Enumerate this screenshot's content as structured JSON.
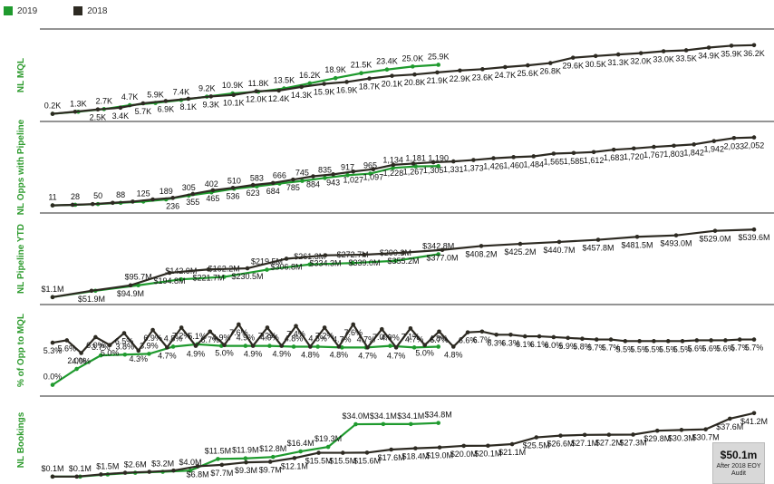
{
  "legend": [
    {
      "name": "2019",
      "color": "#1f9a2e"
    },
    {
      "name": "2018",
      "color": "#2d2a22"
    }
  ],
  "colors": {
    "series_2019": "#1f9a2e",
    "series_2018": "#2d2a22",
    "panel_label": "#2e9b2e"
  },
  "chart_data": [
    {
      "type": "line",
      "title": "NL MQL",
      "series": [
        {
          "name": "2019",
          "values": [
            0.2,
            1.3,
            2.7,
            4.7,
            5.9,
            7.4,
            9.2,
            10.9,
            11.8,
            13.5,
            16.2,
            18.9,
            21.5,
            23.4,
            25.0,
            25.9
          ],
          "labels": [
            "0.2K",
            "1.3K",
            "2.7K",
            "4.7K",
            "5.9K",
            "7.4K",
            "9.2K",
            "10.9K",
            "11.8K",
            "13.5K",
            "16.2K",
            "18.9K",
            "21.5K",
            "23.4K",
            "25.0K",
            "25.9K"
          ]
        },
        {
          "name": "2018",
          "values": [
            0.2,
            1.3,
            2.5,
            3.4,
            5.7,
            6.9,
            8.1,
            9.3,
            10.1,
            12.0,
            12.4,
            14.3,
            15.9,
            16.9,
            18.7,
            20.1,
            20.8,
            21.9,
            22.9,
            23.6,
            24.7,
            25.6,
            26.8,
            29.6,
            30.5,
            31.3,
            32.0,
            33.0,
            33.5,
            34.9,
            35.9,
            36.2
          ],
          "labels": [
            "",
            "",
            "2.5K",
            "3.4K",
            "5.7K",
            "6.9K",
            "8.1K",
            "9.3K",
            "10.1K",
            "12.0K",
            "12.4K",
            "14.3K",
            "15.9K",
            "16.9K",
            "18.7K",
            "20.1K",
            "20.8K",
            "21.9K",
            "22.9K",
            "23.6K",
            "24.7K",
            "25.6K",
            "26.8K",
            "29.6K",
            "30.5K",
            "31.3K",
            "32.0K",
            "33.0K",
            "33.5K",
            "34.9K",
            "35.9K",
            "36.2K"
          ]
        }
      ]
    },
    {
      "type": "line",
      "title": "NL Opps with Pipeline",
      "series": [
        {
          "name": "2019",
          "values": [
            11,
            28,
            50,
            88,
            125,
            189,
            305,
            402,
            510,
            583,
            666,
            745,
            835,
            917,
            965,
            1134,
            1181,
            1190
          ],
          "labels": [
            "11",
            "28",
            "50",
            "88",
            "125",
            "189",
            "305",
            "402",
            "510",
            "583",
            "666",
            "745",
            "835",
            "917",
            "965",
            "1,134",
            "1,181",
            "1,190"
          ]
        },
        {
          "name": "2018",
          "values": [
            11,
            28,
            50,
            88,
            125,
            189,
            236,
            355,
            465,
            536,
            623,
            684,
            785,
            884,
            943,
            1027,
            1097,
            1228,
            1267,
            1305,
            1331,
            1373,
            1426,
            1460,
            1484,
            1565,
            1585,
            1612,
            1683,
            1720,
            1767,
            1803,
            1842,
            1942,
            2033,
            2052
          ],
          "labels": [
            "",
            "",
            "",
            "",
            "",
            "",
            "236",
            "355",
            "465",
            "536",
            "623",
            "684",
            "785",
            "884",
            "943",
            "1,027",
            "1,097",
            "1,228",
            "1,267",
            "1,305",
            "1,331",
            "1,373",
            "1,426",
            "1,460",
            "1,484",
            "1,565",
            "1,585",
            "1,612",
            "1,683",
            "1,720",
            "1,767",
            "1,803",
            "1,842",
            "1,942",
            "2,033",
            "2,052"
          ]
        }
      ]
    },
    {
      "type": "line",
      "title": "NL Pipeline YTD",
      "series": [
        {
          "name": "2019",
          "values": [
            1.1,
            51.9,
            95.7,
            142.9,
            162.2,
            219.5,
            261.3,
            272.7,
            290.3,
            342.8
          ],
          "labels": [
            "$1.1M",
            "",
            "$95.7M",
            "$142.9M",
            "$162.2M",
            "$219.5M",
            "$261.3M",
            "$272.7M",
            "$290.3M",
            "$342.8M"
          ]
        },
        {
          "name": "2018",
          "values": [
            1.1,
            51.9,
            94.9,
            194.8,
            221.7,
            230.5,
            306.8,
            334.3,
            339.0,
            355.2,
            377.0,
            408.2,
            425.2,
            440.7,
            457.8,
            481.5,
            493.0,
            529.0,
            539.6
          ],
          "labels": [
            "",
            "$51.9M",
            "$94.9M",
            "$194.8M",
            "$221.7M",
            "$230.5M",
            "$306.8M",
            "$334.3M",
            "$339.0M",
            "$355.2M",
            "$377.0M",
            "$408.2M",
            "$425.2M",
            "$440.7M",
            "$457.8M",
            "$481.5M",
            "$493.0M",
            "$529.0M",
            "$539.6M"
          ]
        }
      ]
    },
    {
      "type": "line",
      "title": "% of Opp to MQL",
      "series": [
        {
          "name": "2019",
          "values": [
            0.0,
            2.0,
            3.7,
            3.8,
            3.9,
            4.8,
            5.1,
            4.9,
            4.9,
            4.9,
            4.8,
            4.8,
            4.7,
            4.7,
            4.9,
            4.7,
            4.8
          ],
          "labels": [
            "0.0%",
            "2.0%",
            "3.7%",
            "3.8%",
            "3.9%",
            "4.8%",
            "5.1%",
            "4.9%",
            "4.9%",
            "4.9%",
            "4.8%",
            "4.8%",
            "4.7%",
            "4.7%",
            "4.9%",
            "4.7%",
            "4.8%"
          ]
        },
        {
          "name": "2018",
          "values": [
            5.3,
            5.6,
            4.0,
            6.0,
            5.0,
            6.5,
            4.3,
            6.9,
            4.7,
            7.2,
            4.9,
            6.7,
            5.0,
            7.6,
            4.9,
            7.2,
            4.9,
            7.4,
            4.8,
            7.2,
            4.8,
            7.6,
            4.7,
            7.0,
            4.7,
            7.1,
            5.0,
            6.7,
            4.8,
            6.6,
            6.7,
            6.3,
            6.3,
            6.1,
            6.1,
            6.0,
            5.9,
            5.8,
            5.7,
            5.7,
            5.5,
            5.5,
            5.5,
            5.5,
            5.5,
            5.6,
            5.6,
            5.6,
            5.7,
            5.7
          ],
          "labels": [
            "5.3%",
            "5.6%",
            "4.0%",
            "6.0%",
            "5.0%",
            "6.5%",
            "4.3%",
            "6.9%",
            "4.7%",
            "7.2%",
            "4.9%",
            "6.7%",
            "5.0%",
            "7.6%",
            "4.9%",
            "7.2%",
            "4.9%",
            "7.4%",
            "4.8%",
            "7.2%",
            "4.8%",
            "7.6%",
            "4.7%",
            "7.0%",
            "4.7%",
            "7.1%",
            "5.0%",
            "6.7%",
            "4.8%",
            "6.6%",
            "6.7%",
            "6.3%",
            "6.3%",
            "6.1%",
            "6.1%",
            "6.0%",
            "5.9%",
            "5.8%",
            "5.7%",
            "5.7%",
            "5.5%",
            "5.5%",
            "5.5%",
            "5.5%",
            "5.5%",
            "5.6%",
            "5.6%",
            "5.6%",
            "5.7%",
            "5.7%"
          ]
        }
      ]
    },
    {
      "type": "line",
      "title": "NL Bookings",
      "series": [
        {
          "name": "2019",
          "values": [
            0.1,
            0.1,
            1.5,
            2.6,
            3.2,
            4.0,
            11.5,
            11.9,
            12.8,
            16.4,
            19.3,
            34.0,
            34.1,
            34.1,
            34.8
          ],
          "labels": [
            "$0.1M",
            "$0.1M",
            "$1.5M",
            "$2.6M",
            "$3.2M",
            "$4.0M",
            "$11.5M",
            "$11.9M",
            "$12.8M",
            "$16.4M",
            "$19.3M",
            "$34.0M",
            "$34.1M",
            "$34.1M",
            "$34.8M"
          ]
        },
        {
          "name": "2018",
          "values": [
            0.1,
            0.1,
            1.5,
            2.6,
            3.2,
            4.0,
            6.8,
            7.7,
            9.3,
            9.7,
            12.1,
            15.5,
            15.5,
            15.6,
            17.6,
            18.4,
            19.0,
            20.0,
            20.1,
            21.1,
            25.5,
            26.6,
            27.1,
            27.2,
            27.3,
            29.8,
            30.3,
            30.7,
            37.6,
            41.2
          ],
          "labels": [
            "",
            "",
            "",
            "",
            "",
            "",
            "$6.8M",
            "$7.7M",
            "$9.3M",
            "$9.7M",
            "$12.1M",
            "$15.5M",
            "$15.5M",
            "$15.6M",
            "$17.6M",
            "$18.4M",
            "$19.0M",
            "$20.0M",
            "$20.1M",
            "$21.1M",
            "$25.5M",
            "$26.6M",
            "$27.1M",
            "$27.2M",
            "$27.3M",
            "$29.8M",
            "$30.3M",
            "$30.7M",
            "$37.6M",
            "$41.2M"
          ]
        }
      ]
    }
  ],
  "badge": {
    "value": "$50.1m",
    "note": "After 2018 EOY Audit"
  }
}
